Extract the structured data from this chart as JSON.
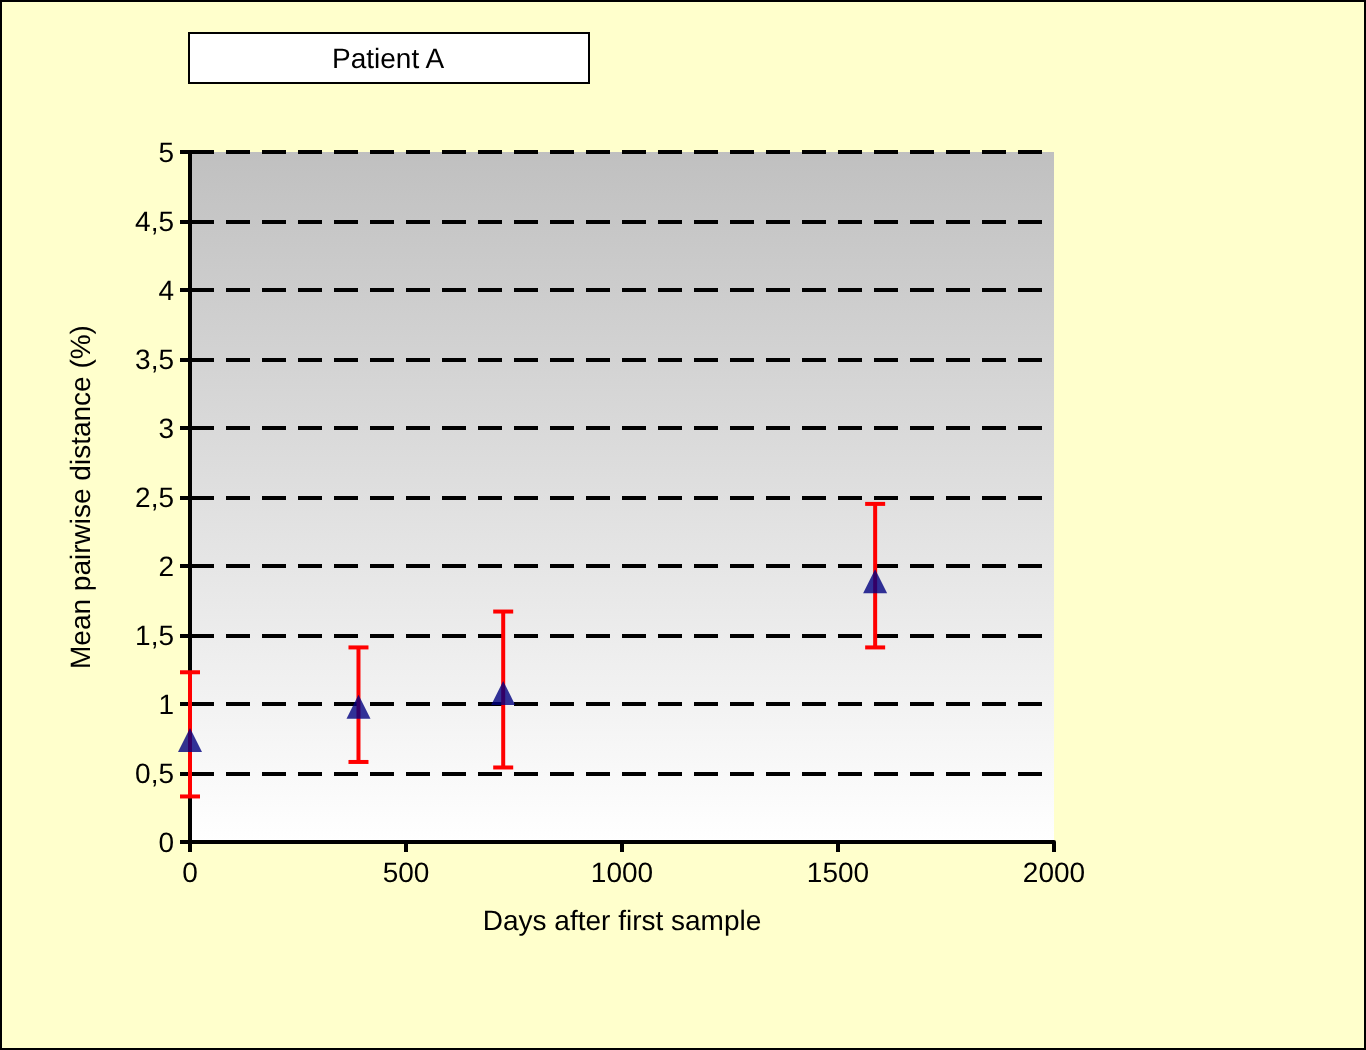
{
  "chart_data": {
    "type": "scatter",
    "title": "Patient A",
    "xlabel": "Days after first sample",
    "ylabel": "Mean pairwise distance (%)",
    "x": [
      0,
      390,
      725,
      1586
    ],
    "series": [
      {
        "color": "#000080",
        "values": [
          0.74,
          0.98,
          1.08,
          1.89
        ],
        "errors": [
          [
            0.33,
            1.23
          ],
          [
            0.58,
            1.41
          ],
          [
            0.54,
            1.67
          ],
          [
            1.41,
            2.45
          ]
        ]
      }
    ],
    "xlim": [
      0,
      2000
    ],
    "xticks": [
      0,
      500,
      1000,
      1500,
      2000
    ],
    "ylim": [
      0,
      5
    ],
    "yticks": [
      0,
      {
        "value": 0.5,
        "label": "0,5"
      },
      1,
      {
        "value": 1.5,
        "label": "1,5"
      },
      2,
      {
        "value": 2.5,
        "label": "2,5"
      },
      3,
      {
        "value": 3.5,
        "label": "3,5"
      },
      4,
      {
        "value": 4.5,
        "label": "4,5"
      },
      5
    ],
    "grid": "y",
    "marker": "triangle"
  }
}
